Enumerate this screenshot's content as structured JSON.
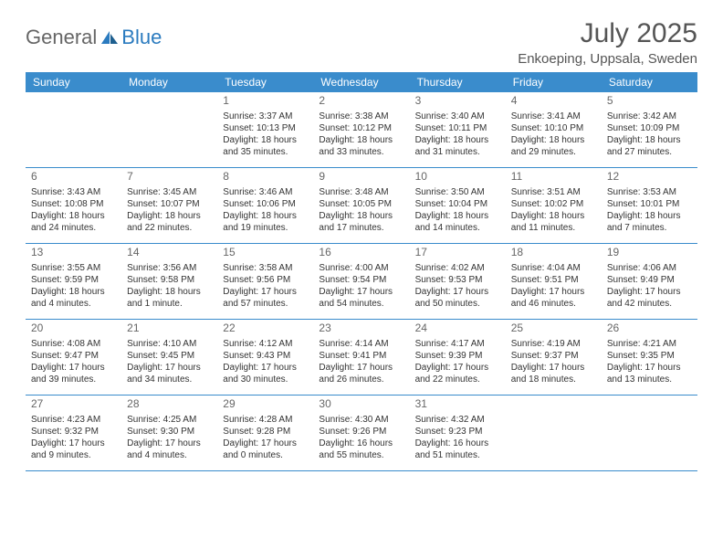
{
  "logo": {
    "text_general": "General",
    "text_blue": "Blue",
    "icon_color": "#2b7bbf"
  },
  "header": {
    "month_title": "July 2025",
    "location": "Enkoeping, Uppsala, Sweden"
  },
  "colors": {
    "header_bg": "#3a8ccc",
    "header_text": "#ffffff",
    "border": "#3a8ccc",
    "text": "#333333",
    "muted": "#666666"
  },
  "weekdays": [
    "Sunday",
    "Monday",
    "Tuesday",
    "Wednesday",
    "Thursday",
    "Friday",
    "Saturday"
  ],
  "weeks": [
    [
      {
        "day": "",
        "sunrise": "",
        "sunset": "",
        "daylight": ""
      },
      {
        "day": "",
        "sunrise": "",
        "sunset": "",
        "daylight": ""
      },
      {
        "day": "1",
        "sunrise": "Sunrise: 3:37 AM",
        "sunset": "Sunset: 10:13 PM",
        "daylight": "Daylight: 18 hours and 35 minutes."
      },
      {
        "day": "2",
        "sunrise": "Sunrise: 3:38 AM",
        "sunset": "Sunset: 10:12 PM",
        "daylight": "Daylight: 18 hours and 33 minutes."
      },
      {
        "day": "3",
        "sunrise": "Sunrise: 3:40 AM",
        "sunset": "Sunset: 10:11 PM",
        "daylight": "Daylight: 18 hours and 31 minutes."
      },
      {
        "day": "4",
        "sunrise": "Sunrise: 3:41 AM",
        "sunset": "Sunset: 10:10 PM",
        "daylight": "Daylight: 18 hours and 29 minutes."
      },
      {
        "day": "5",
        "sunrise": "Sunrise: 3:42 AM",
        "sunset": "Sunset: 10:09 PM",
        "daylight": "Daylight: 18 hours and 27 minutes."
      }
    ],
    [
      {
        "day": "6",
        "sunrise": "Sunrise: 3:43 AM",
        "sunset": "Sunset: 10:08 PM",
        "daylight": "Daylight: 18 hours and 24 minutes."
      },
      {
        "day": "7",
        "sunrise": "Sunrise: 3:45 AM",
        "sunset": "Sunset: 10:07 PM",
        "daylight": "Daylight: 18 hours and 22 minutes."
      },
      {
        "day": "8",
        "sunrise": "Sunrise: 3:46 AM",
        "sunset": "Sunset: 10:06 PM",
        "daylight": "Daylight: 18 hours and 19 minutes."
      },
      {
        "day": "9",
        "sunrise": "Sunrise: 3:48 AM",
        "sunset": "Sunset: 10:05 PM",
        "daylight": "Daylight: 18 hours and 17 minutes."
      },
      {
        "day": "10",
        "sunrise": "Sunrise: 3:50 AM",
        "sunset": "Sunset: 10:04 PM",
        "daylight": "Daylight: 18 hours and 14 minutes."
      },
      {
        "day": "11",
        "sunrise": "Sunrise: 3:51 AM",
        "sunset": "Sunset: 10:02 PM",
        "daylight": "Daylight: 18 hours and 11 minutes."
      },
      {
        "day": "12",
        "sunrise": "Sunrise: 3:53 AM",
        "sunset": "Sunset: 10:01 PM",
        "daylight": "Daylight: 18 hours and 7 minutes."
      }
    ],
    [
      {
        "day": "13",
        "sunrise": "Sunrise: 3:55 AM",
        "sunset": "Sunset: 9:59 PM",
        "daylight": "Daylight: 18 hours and 4 minutes."
      },
      {
        "day": "14",
        "sunrise": "Sunrise: 3:56 AM",
        "sunset": "Sunset: 9:58 PM",
        "daylight": "Daylight: 18 hours and 1 minute."
      },
      {
        "day": "15",
        "sunrise": "Sunrise: 3:58 AM",
        "sunset": "Sunset: 9:56 PM",
        "daylight": "Daylight: 17 hours and 57 minutes."
      },
      {
        "day": "16",
        "sunrise": "Sunrise: 4:00 AM",
        "sunset": "Sunset: 9:54 PM",
        "daylight": "Daylight: 17 hours and 54 minutes."
      },
      {
        "day": "17",
        "sunrise": "Sunrise: 4:02 AM",
        "sunset": "Sunset: 9:53 PM",
        "daylight": "Daylight: 17 hours and 50 minutes."
      },
      {
        "day": "18",
        "sunrise": "Sunrise: 4:04 AM",
        "sunset": "Sunset: 9:51 PM",
        "daylight": "Daylight: 17 hours and 46 minutes."
      },
      {
        "day": "19",
        "sunrise": "Sunrise: 4:06 AM",
        "sunset": "Sunset: 9:49 PM",
        "daylight": "Daylight: 17 hours and 42 minutes."
      }
    ],
    [
      {
        "day": "20",
        "sunrise": "Sunrise: 4:08 AM",
        "sunset": "Sunset: 9:47 PM",
        "daylight": "Daylight: 17 hours and 39 minutes."
      },
      {
        "day": "21",
        "sunrise": "Sunrise: 4:10 AM",
        "sunset": "Sunset: 9:45 PM",
        "daylight": "Daylight: 17 hours and 34 minutes."
      },
      {
        "day": "22",
        "sunrise": "Sunrise: 4:12 AM",
        "sunset": "Sunset: 9:43 PM",
        "daylight": "Daylight: 17 hours and 30 minutes."
      },
      {
        "day": "23",
        "sunrise": "Sunrise: 4:14 AM",
        "sunset": "Sunset: 9:41 PM",
        "daylight": "Daylight: 17 hours and 26 minutes."
      },
      {
        "day": "24",
        "sunrise": "Sunrise: 4:17 AM",
        "sunset": "Sunset: 9:39 PM",
        "daylight": "Daylight: 17 hours and 22 minutes."
      },
      {
        "day": "25",
        "sunrise": "Sunrise: 4:19 AM",
        "sunset": "Sunset: 9:37 PM",
        "daylight": "Daylight: 17 hours and 18 minutes."
      },
      {
        "day": "26",
        "sunrise": "Sunrise: 4:21 AM",
        "sunset": "Sunset: 9:35 PM",
        "daylight": "Daylight: 17 hours and 13 minutes."
      }
    ],
    [
      {
        "day": "27",
        "sunrise": "Sunrise: 4:23 AM",
        "sunset": "Sunset: 9:32 PM",
        "daylight": "Daylight: 17 hours and 9 minutes."
      },
      {
        "day": "28",
        "sunrise": "Sunrise: 4:25 AM",
        "sunset": "Sunset: 9:30 PM",
        "daylight": "Daylight: 17 hours and 4 minutes."
      },
      {
        "day": "29",
        "sunrise": "Sunrise: 4:28 AM",
        "sunset": "Sunset: 9:28 PM",
        "daylight": "Daylight: 17 hours and 0 minutes."
      },
      {
        "day": "30",
        "sunrise": "Sunrise: 4:30 AM",
        "sunset": "Sunset: 9:26 PM",
        "daylight": "Daylight: 16 hours and 55 minutes."
      },
      {
        "day": "31",
        "sunrise": "Sunrise: 4:32 AM",
        "sunset": "Sunset: 9:23 PM",
        "daylight": "Daylight: 16 hours and 51 minutes."
      },
      {
        "day": "",
        "sunrise": "",
        "sunset": "",
        "daylight": ""
      },
      {
        "day": "",
        "sunrise": "",
        "sunset": "",
        "daylight": ""
      }
    ]
  ]
}
